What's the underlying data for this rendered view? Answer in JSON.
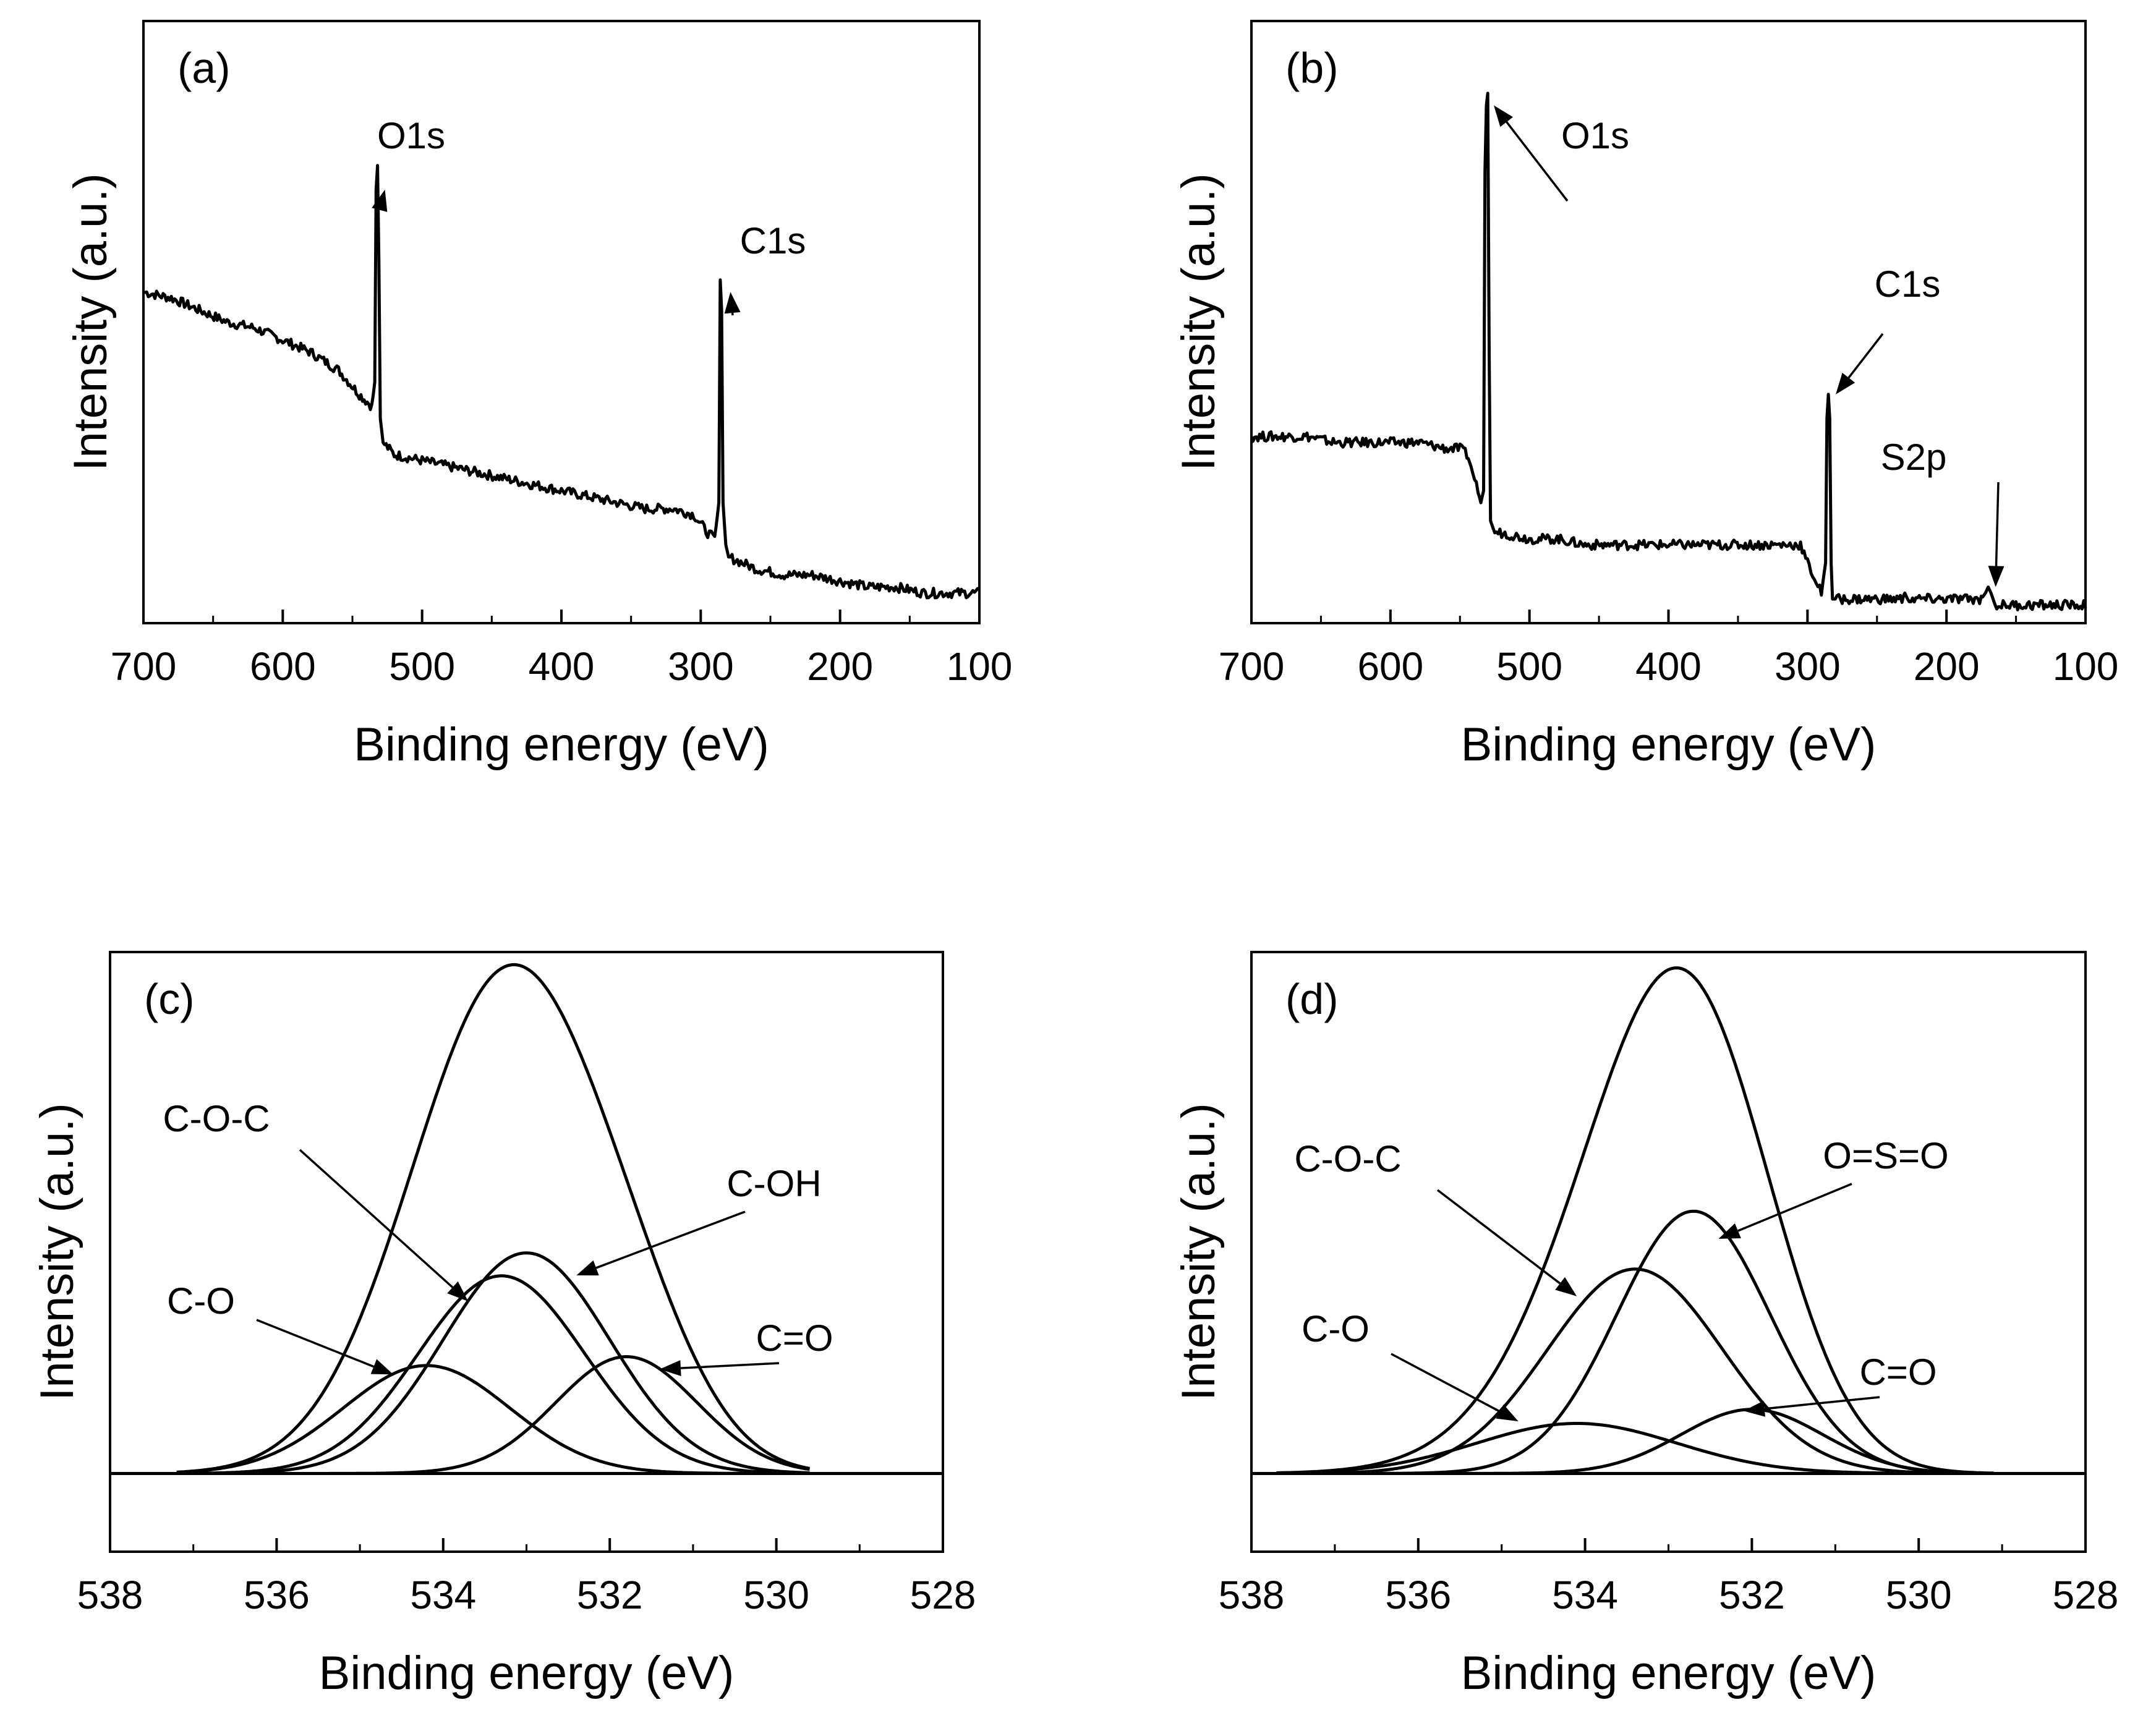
{
  "chart_data": [
    {
      "type": "line",
      "panel_label": "(a)",
      "xlabel": "Binding energy (eV)",
      "ylabel": "Intensity (a.u.)",
      "xlim": [
        700,
        100
      ],
      "ylim": [
        0,
        100
      ],
      "x_ticks": [
        "700",
        "600",
        "500",
        "400",
        "300",
        "200",
        "100"
      ],
      "x_tick_values": [
        700,
        600,
        500,
        400,
        300,
        200,
        100
      ],
      "series": [
        {
          "name": "survey",
          "x": [
            700,
            680,
            660,
            640,
            620,
            600,
            580,
            560,
            545,
            536,
            534,
            533,
            532,
            531,
            530,
            528,
            520,
            500,
            480,
            460,
            440,
            420,
            400,
            380,
            360,
            340,
            320,
            305,
            295,
            290,
            287,
            286,
            285,
            284,
            282,
            280,
            270,
            260,
            240,
            220,
            200,
            180,
            160,
            140,
            120,
            100
          ],
          "y": [
            55,
            54,
            52,
            50,
            49,
            47,
            45,
            42,
            38,
            36,
            40,
            72,
            76,
            60,
            34,
            30,
            28,
            27,
            26,
            25,
            24,
            23,
            22,
            21,
            20,
            19,
            19,
            18,
            15,
            14,
            20,
            57,
            52,
            20,
            13,
            11,
            10,
            9,
            8,
            8,
            7,
            6,
            6,
            5,
            5,
            5
          ]
        }
      ],
      "annotations": [
        {
          "text": "O1s",
          "x": 532,
          "y": 72
        },
        {
          "text": "C1s",
          "x": 284,
          "y": 55
        }
      ]
    },
    {
      "type": "line",
      "panel_label": "(b)",
      "xlabel": "Binding energy (eV)",
      "ylabel": "Intensity (a.u.)",
      "xlim": [
        700,
        100
      ],
      "ylim": [
        0,
        100
      ],
      "x_ticks": [
        "700",
        "600",
        "500",
        "400",
        "300",
        "200",
        "100"
      ],
      "x_tick_values": [
        700,
        600,
        500,
        400,
        300,
        200,
        100
      ],
      "series": [
        {
          "name": "survey",
          "x": [
            700,
            680,
            660,
            640,
            620,
            600,
            580,
            560,
            550,
            545,
            542,
            537,
            535,
            533,
            532,
            531,
            530,
            529,
            528,
            525,
            520,
            500,
            480,
            460,
            440,
            420,
            400,
            380,
            360,
            340,
            320,
            310,
            305,
            300,
            290,
            287,
            286,
            285,
            284,
            283,
            282,
            280,
            270,
            250,
            232,
            230,
            228,
            210,
            190,
            175,
            172,
            170,
            168,
            165,
            150,
            130,
            110,
            100
          ],
          "y": [
            31,
            31,
            31,
            30,
            30,
            30,
            30,
            29,
            29,
            28,
            26,
            22,
            20,
            22,
            75,
            86,
            88,
            45,
            17,
            15,
            15,
            14,
            14,
            13,
            13,
            13,
            13,
            13,
            13,
            13,
            13,
            13,
            13,
            10,
            5,
            10,
            34,
            38,
            34,
            10,
            4,
            4,
            4,
            4,
            4,
            5,
            4,
            4,
            4,
            4,
            5,
            6,
            5,
            3,
            3,
            3,
            3,
            3
          ]
        }
      ],
      "annotations": [
        {
          "text": "O1s",
          "x": 531,
          "y": 86
        },
        {
          "text": "C1s",
          "x": 285,
          "y": 38
        },
        {
          "text": "S2p",
          "x": 170,
          "y": 6
        }
      ]
    },
    {
      "type": "line",
      "panel_label": "(c)",
      "xlabel": "Binding energy (eV)",
      "ylabel": "Intensity (a.u.)",
      "xlim": [
        538,
        528
      ],
      "ylim": [
        -15,
        100
      ],
      "x_ticks": [
        "538",
        "536",
        "534",
        "532",
        "530",
        "528"
      ],
      "x_tick_values": [
        538,
        536,
        534,
        532,
        530,
        528
      ],
      "components": [
        {
          "name": "C-OH",
          "center": 533.0,
          "height": 42.3,
          "sigma": 1.0
        },
        {
          "name": "C-O-C",
          "center": 533.3,
          "height": 37.9,
          "sigma": 1.0
        },
        {
          "name": "C-O",
          "center": 534.2,
          "height": 20.7,
          "sigma": 1.0
        },
        {
          "name": "C=O",
          "center": 531.8,
          "height": 22.4,
          "sigma": 0.85
        }
      ],
      "envelope": "sum",
      "x_range": [
        537.2,
        529.6
      ],
      "annotations": [
        {
          "text": "C-O-C",
          "x": 533.7,
          "y": 33
        },
        {
          "text": "C-OH",
          "x": 532.4,
          "y": 38
        },
        {
          "text": "C-O",
          "x": 534.6,
          "y": 19
        },
        {
          "text": "C=O",
          "x": 531.4,
          "y": 20
        }
      ]
    },
    {
      "type": "line",
      "panel_label": "(d)",
      "xlabel": "Binding energy (eV)",
      "ylabel": "Intensity (a.u.)",
      "xlim": [
        538,
        528
      ],
      "ylim": [
        -15,
        100
      ],
      "x_ticks": [
        "538",
        "536",
        "534",
        "532",
        "530",
        "528"
      ],
      "x_tick_values": [
        538,
        536,
        534,
        532,
        530,
        528
      ],
      "components": [
        {
          "name": "O=S=O",
          "center": 532.7,
          "height": 50.3,
          "sigma": 0.92
        },
        {
          "name": "C-O-C",
          "center": 533.4,
          "height": 39.2,
          "sigma": 1.05
        },
        {
          "name": "C-O",
          "center": 534.1,
          "height": 9.6,
          "sigma": 1.2
        },
        {
          "name": "C=O",
          "center": 532.0,
          "height": 12.3,
          "sigma": 0.85
        }
      ],
      "envelope": "sum",
      "x_range": [
        537.7,
        529.1
      ],
      "annotations": [
        {
          "text": "C-O-C",
          "x": 534.1,
          "y": 34
        },
        {
          "text": "O=S=O",
          "x": 532.4,
          "y": 45
        },
        {
          "text": "C-O",
          "x": 534.8,
          "y": 10
        },
        {
          "text": "C=O",
          "x": 532.1,
          "y": 12
        }
      ]
    }
  ]
}
